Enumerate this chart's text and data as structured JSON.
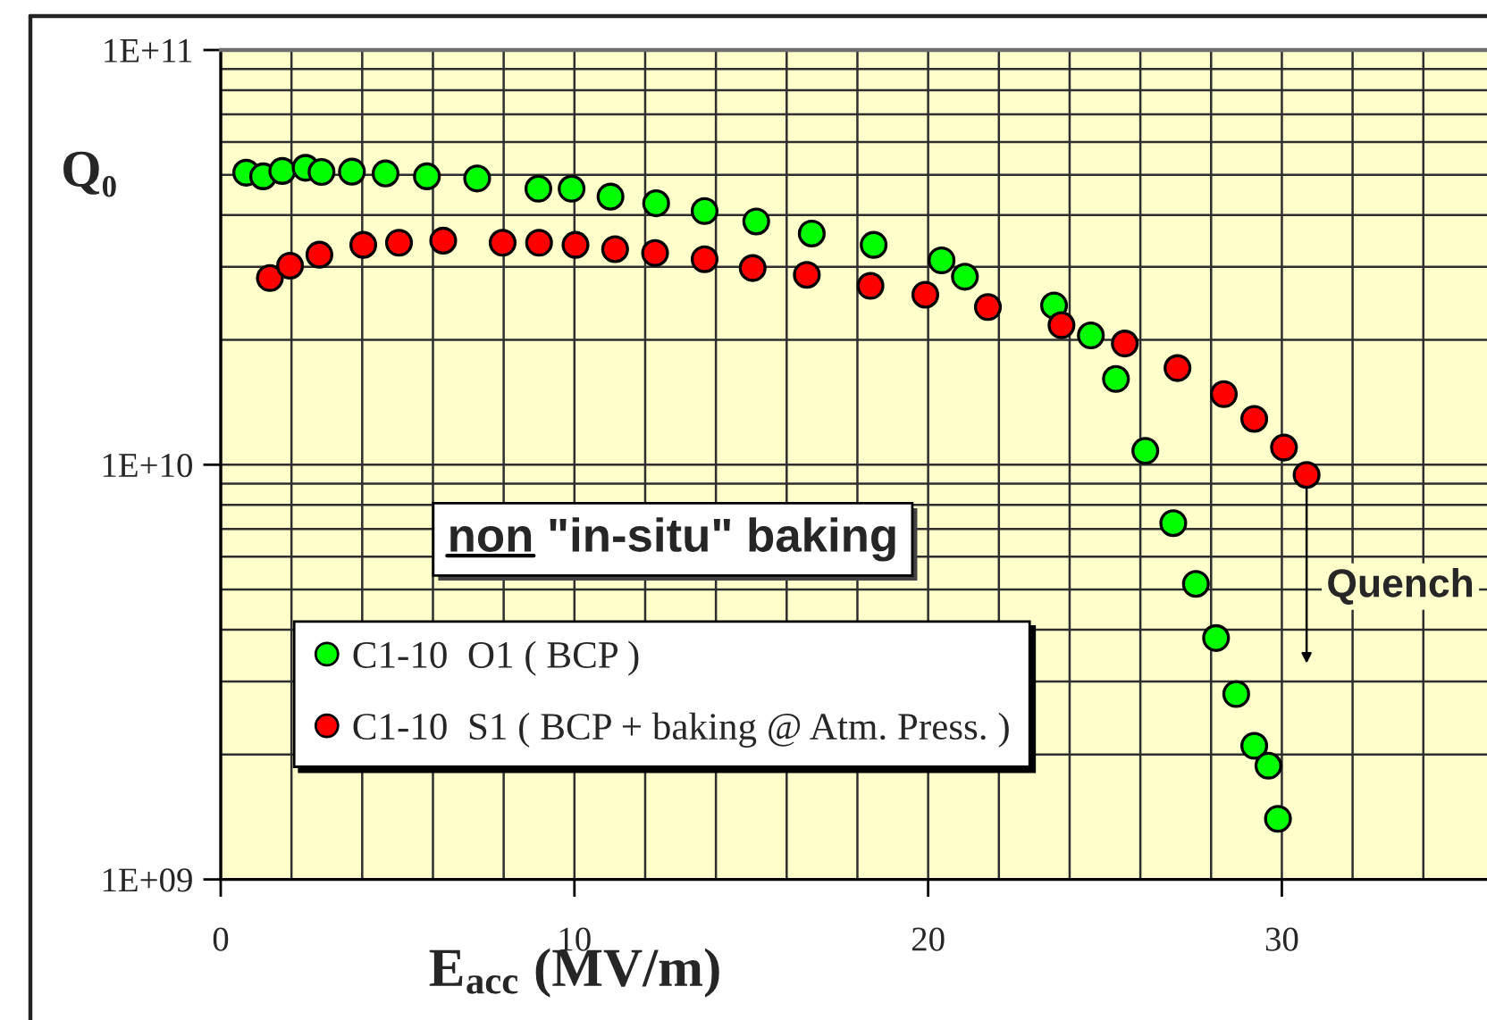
{
  "chart_data": {
    "type": "scatter",
    "xlabel": "E$_{acc}$ (MV/m)",
    "ylabel": "Q₀",
    "xlim": [
      0,
      35.8
    ],
    "xticks": [
      0,
      10,
      20,
      30,
      {
        "value": 2,
        "label": null
      },
      {
        "value": 4,
        "label": null
      },
      {
        "value": 6,
        "label": null
      },
      {
        "value": 8,
        "label": null
      },
      {
        "value": 12,
        "label": null
      },
      {
        "value": 14,
        "label": null
      },
      {
        "value": 16,
        "label": null
      },
      {
        "value": 18,
        "label": null
      },
      {
        "value": 22,
        "label": null
      },
      {
        "value": 24,
        "label": null
      },
      {
        "value": 26,
        "label": null
      },
      {
        "value": 28,
        "label": null
      },
      {
        "value": 32,
        "label": null
      },
      {
        "value": 34,
        "label": null
      }
    ],
    "ylim": [
      1000000000.0,
      100000000000.0
    ],
    "yticks": [
      {
        "value": 1000000000.0,
        "label": "1E+09"
      },
      {
        "value": 10000000000.0,
        "label": "1E+10"
      },
      {
        "value": 100000000000.0,
        "label": "1E+11"
      },
      {
        "value": 2000000000.0,
        "label": null
      },
      {
        "value": 3000000000.0,
        "label": null
      },
      {
        "value": 4000000000.0,
        "label": null
      },
      {
        "value": 5000000000.0,
        "label": null
      },
      {
        "value": 6000000000.0,
        "label": null
      },
      {
        "value": 7000000000.0,
        "label": null
      },
      {
        "value": 8000000000.0,
        "label": null
      },
      {
        "value": 9000000000.0,
        "label": null
      },
      {
        "value": 20000000000.0,
        "label": null
      },
      {
        "value": 30000000000.0,
        "label": null
      },
      {
        "value": 40000000000.0,
        "label": null
      },
      {
        "value": 50000000000.0,
        "label": null
      },
      {
        "value": 60000000000.0,
        "label": null
      },
      {
        "value": 70000000000.0,
        "label": null
      },
      {
        "value": 80000000000.0,
        "label": null
      },
      {
        "value": 90000000000.0,
        "label": null
      }
    ],
    "log": "y",
    "grid": true,
    "legend": "bottom left",
    "marker": "circle",
    "series": [
      {
        "name": "C1-10  O1 ( BCP )",
        "color": "#00ff00",
        "x": [
          0.72,
          1.2,
          1.74,
          2.4,
          2.85,
          3.71,
          4.66,
          5.83,
          7.25,
          8.98,
          9.92,
          11.02,
          12.31,
          13.68,
          15.14,
          16.71,
          18.46,
          20.38,
          21.04,
          23.56,
          24.6,
          25.31,
          26.14,
          26.93,
          27.57,
          28.14,
          28.71,
          29.22,
          29.62,
          29.89
        ],
        "values": [
          50600000000.0,
          49600000000.0,
          51100000000.0,
          52000000000.0,
          50800000000.0,
          50900000000.0,
          50400000000.0,
          49600000000.0,
          49000000000.0,
          46300000000.0,
          46300000000.0,
          44300000000.0,
          42700000000.0,
          40900000000.0,
          38600000000.0,
          36100000000.0,
          33900000000.0,
          31100000000.0,
          28400000000.0,
          24200000000.0,
          20500000000.0,
          16100000000.0,
          10800000000.0,
          7230000000.0,
          5160000000.0,
          3820000000.0,
          2800000000.0,
          2100000000.0,
          1880000000.0,
          1400000000.0
        ]
      },
      {
        "name": "C1-10  S1 ( BCP + baking @ Atm. Press. )",
        "color": "#ff0000",
        "x": [
          1.39,
          1.96,
          2.79,
          4.03,
          5.04,
          6.29,
          7.97,
          9.0,
          10.03,
          11.15,
          12.28,
          13.68,
          15.04,
          16.57,
          18.37,
          19.92,
          21.69,
          23.77,
          25.56,
          27.05,
          28.36,
          29.22,
          30.06,
          30.7
        ],
        "values": [
          28200000000.0,
          30200000000.0,
          32100000000.0,
          33900000000.0,
          34300000000.0,
          34700000000.0,
          34300000000.0,
          34300000000.0,
          33900000000.0,
          33100000000.0,
          32400000000.0,
          31300000000.0,
          29800000000.0,
          28700000000.0,
          27000000000.0,
          25700000000.0,
          24000000000.0,
          21700000000.0,
          19600000000.0,
          17100000000.0,
          14800000000.0,
          12900000000.0,
          11000000000.0,
          9450000000.0
        ]
      }
    ],
    "annotations": [
      "non \"in-situ\" baking",
      {
        "text": "Quench",
        "x": 30.7,
        "y": 9450000000.0
      }
    ]
  }
}
